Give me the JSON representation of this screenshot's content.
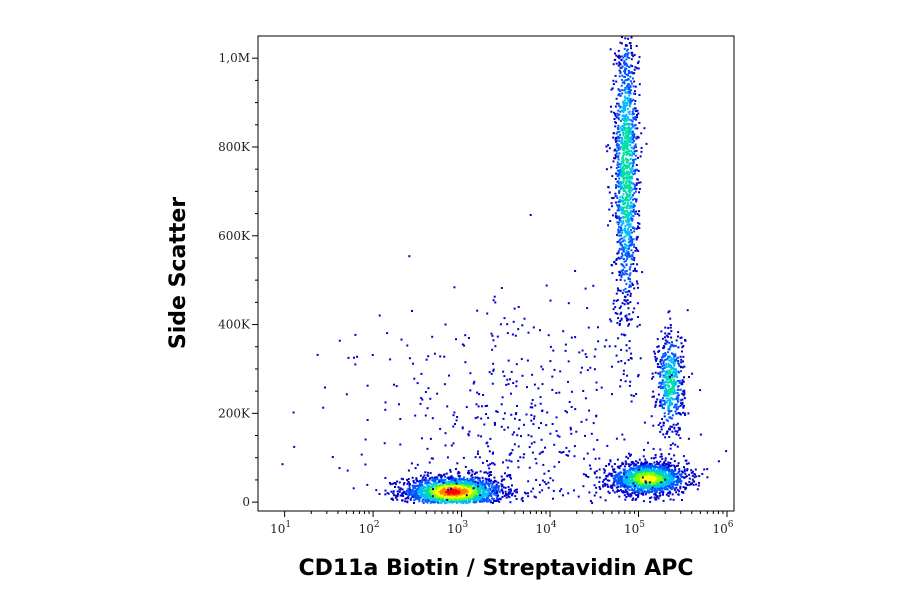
{
  "chart_data": {
    "type": "scatter",
    "subtype": "flow-cytometry-density-dot-plot",
    "title": "",
    "xlabel": "CD11a Biotin / Streptavidin APC",
    "ylabel": "Side Scatter",
    "x_scale": "log",
    "xlim": [
      5,
      1200000
    ],
    "ylim": [
      -20000,
      1050000
    ],
    "x_ticks": [
      {
        "value": 10,
        "base": "10",
        "exp": "1"
      },
      {
        "value": 100,
        "base": "10",
        "exp": "2"
      },
      {
        "value": 1000,
        "base": "10",
        "exp": "3"
      },
      {
        "value": 10000,
        "base": "10",
        "exp": "4"
      },
      {
        "value": 100000,
        "base": "10",
        "exp": "5"
      },
      {
        "value": 1000000,
        "base": "10",
        "exp": "6"
      }
    ],
    "y_ticks": [
      {
        "value": 0,
        "label": "0"
      },
      {
        "value": 200000,
        "label": "200K"
      },
      {
        "value": 400000,
        "label": "400K"
      },
      {
        "value": 600000,
        "label": "600K"
      },
      {
        "value": 800000,
        "label": "800K"
      },
      {
        "value": 1000000,
        "label": "1,0M"
      }
    ],
    "grid": false,
    "legend": "none",
    "color_scale": [
      "#0000cc",
      "#0055ff",
      "#00bbff",
      "#00e0a0",
      "#80ff00",
      "#ffff00",
      "#ff8000",
      "#ff0000"
    ],
    "populations": [
      {
        "log10_x_center": 2.9,
        "y_center": 25000,
        "log10_x_spread": 0.28,
        "y_spread": 18000,
        "count": 1800,
        "peak_density": 1.0
      },
      {
        "log10_x_center": 5.1,
        "y_center": 55000,
        "log10_x_spread": 0.22,
        "y_spread": 18000,
        "count": 1500,
        "peak_density": 0.75
      },
      {
        "log10_x_center": 5.35,
        "y_center": 270000,
        "log10_x_spread": 0.08,
        "y_spread": 60000,
        "count": 500,
        "peak_density": 0.45
      },
      {
        "log10_x_center": 4.85,
        "y_center": 750000,
        "log10_x_spread": 0.07,
        "y_spread": 170000,
        "count": 1300,
        "peak_density": 0.5
      },
      {
        "log10_x_center": 3.6,
        "y_center": 120000,
        "log10_x_spread": 0.9,
        "y_spread": 180000,
        "count": 700,
        "peak_density": 0.05
      }
    ]
  }
}
